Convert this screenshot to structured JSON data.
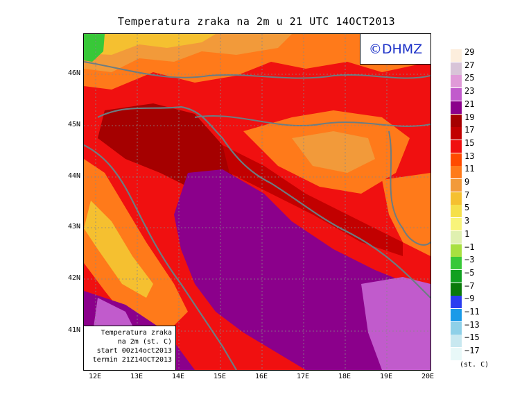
{
  "title": "Temperatura zraka na 2m u 21 UTC 14OCT2013",
  "logo": "©DHMZ",
  "info": {
    "line1": "Temperatura zraka",
    "line2": "na 2m (st. C)",
    "line3": "start 00z14oct2013",
    "line4": "termin 21Z14OCT2013"
  },
  "lat_labels": [
    "46N",
    "45N",
    "44N",
    "43N",
    "42N",
    "41N"
  ],
  "lon_labels": [
    "12E",
    "13E",
    "14E",
    "15E",
    "16E",
    "17E",
    "18E",
    "19E",
    "20E"
  ],
  "legend": {
    "labels": [
      "29",
      "27",
      "25",
      "23",
      "21",
      "19",
      "17",
      "15",
      "13",
      "11",
      "9",
      "7",
      "5",
      "3",
      "1",
      "−1",
      "−3",
      "−5",
      "−7",
      "−9",
      "−11",
      "−13",
      "−15",
      "−17"
    ],
    "colors": [
      "#fdeedd",
      "#d8c4d8",
      "#e09ad8",
      "#c15bcc",
      "#8b008b",
      "#a50000",
      "#c20000",
      "#f01010",
      "#ff4a00",
      "#ff7a1a",
      "#f29a3a",
      "#f5c030",
      "#f5e04a",
      "#f8f47a",
      "#e0f0b0",
      "#a8e040",
      "#38c838",
      "#10a020",
      "#0a7a0a",
      "#2a3cf0",
      "#1a9ae8",
      "#8ed0e8",
      "#c8e8f0",
      "#e8f8f8"
    ],
    "unit": "(st. C)"
  }
}
